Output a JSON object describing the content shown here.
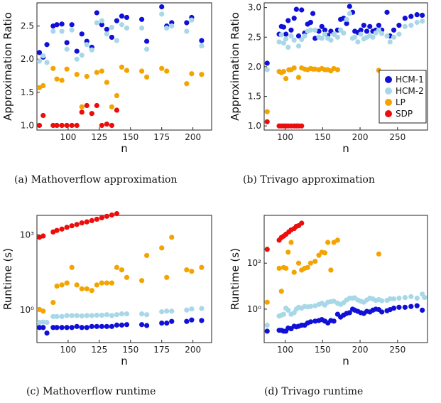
{
  "colors": {
    "HCM-1": "#1010d8",
    "HCM-2": "#a8d8e8",
    "LP": "#f4a400",
    "SDP": "#ec0d0d"
  },
  "captions": {
    "a": "(a)  Mathoverflow approximation",
    "b": "(b)  Trivago approximation",
    "c": "(c)  Mathoverflow runtime",
    "d": "(d)  Trivago runtime"
  },
  "legend": [
    "HCM-1",
    "HCM-2",
    "LP",
    "SDP"
  ],
  "chart_data": [
    {
      "id": "a",
      "type": "scatter",
      "xlabel": "n",
      "ylabel": "Approximation Ratio",
      "xlim": [
        75,
        215
      ],
      "ylim": [
        0.93,
        2.85
      ],
      "xticks": [
        100,
        125,
        150,
        175,
        200
      ],
      "yticks": [
        1.0,
        1.5,
        2.0,
        2.5
      ],
      "ytick_labels": [
        "1.0",
        "1.5",
        "2.0",
        "2.5"
      ],
      "yscale": "linear",
      "grid": false,
      "series": [
        {
          "name": "HCM-1",
          "x": [
            77,
            80,
            83,
            88,
            91,
            95,
            99,
            103,
            107,
            111,
            115,
            119,
            123,
            127,
            131,
            135,
            139,
            143,
            147,
            159,
            163,
            175,
            179,
            183,
            195,
            199,
            207
          ],
          "y": [
            2.1,
            2.03,
            2.22,
            2.5,
            2.52,
            2.53,
            2.25,
            2.52,
            2.12,
            2.38,
            2.27,
            2.18,
            2.7,
            2.52,
            2.45,
            2.33,
            2.58,
            2.65,
            2.63,
            2.6,
            2.27,
            2.79,
            2.5,
            2.55,
            2.55,
            2.63,
            2.28
          ]
        },
        {
          "name": "HCM-2",
          "x": [
            77,
            80,
            83,
            88,
            95,
            99,
            103,
            107,
            111,
            115,
            119,
            123,
            127,
            131,
            135,
            139,
            143,
            147,
            159,
            163,
            175,
            179,
            183,
            195,
            199,
            207
          ],
          "y": [
            1.97,
            2.05,
            1.95,
            2.42,
            2.42,
            2.15,
            2.44,
            2.0,
            2.06,
            2.22,
            2.14,
            2.55,
            2.58,
            2.38,
            2.48,
            2.28,
            2.52,
            2.47,
            2.47,
            2.15,
            2.68,
            2.47,
            2.5,
            2.42,
            2.59,
            2.2
          ]
        },
        {
          "name": "LP",
          "x": [
            77,
            80,
            88,
            91,
            95,
            99,
            107,
            111,
            115,
            123,
            127,
            131,
            135,
            139,
            143,
            147,
            159,
            163,
            175,
            179,
            195,
            199,
            207
          ],
          "y": [
            1.57,
            1.6,
            1.86,
            1.7,
            1.68,
            1.85,
            1.77,
            1.28,
            1.74,
            1.8,
            1.82,
            1.65,
            1.28,
            1.45,
            1.88,
            1.83,
            1.82,
            1.73,
            1.86,
            1.82,
            1.63,
            1.78,
            1.77
          ]
        },
        {
          "name": "SDP",
          "x": [
            77,
            80,
            88,
            91,
            95,
            99,
            103,
            107,
            111,
            115,
            119,
            123,
            127,
            131,
            135,
            139
          ],
          "y": [
            1.0,
            1.15,
            1.0,
            1.0,
            1.0,
            1.0,
            1.0,
            1.0,
            1.2,
            1.3,
            1.18,
            1.3,
            1.0,
            1.02,
            1.0,
            1.23
          ]
        }
      ]
    },
    {
      "id": "b",
      "type": "scatter",
      "xlabel": "n",
      "ylabel": "Approximation Ratio",
      "xlim": [
        72,
        290
      ],
      "ylim": [
        0.93,
        3.08
      ],
      "xticks": [
        100,
        150,
        200,
        250
      ],
      "yticks": [
        1.0,
        1.5,
        2.0,
        2.5,
        3.0
      ],
      "ytick_labels": [
        "1.0",
        "1.5",
        "2.0",
        "2.5",
        "3.0"
      ],
      "yscale": "linear",
      "grid": false,
      "series": [
        {
          "name": "HCM-1",
          "x": [
            76,
            92,
            95,
            98,
            101,
            104,
            108,
            112,
            115,
            118,
            122,
            126,
            130,
            134,
            137,
            140,
            145,
            149,
            153,
            157,
            161,
            165,
            170,
            174,
            178,
            182,
            186,
            190,
            193,
            197,
            201,
            205,
            209,
            213,
            217,
            221,
            225,
            229,
            236,
            240,
            245,
            252,
            260,
            268,
            276,
            283
          ],
          "y": [
            2.06,
            2.55,
            2.68,
            2.67,
            2.55,
            2.78,
            2.62,
            2.82,
            2.97,
            2.52,
            2.96,
            2.57,
            2.72,
            2.75,
            2.9,
            2.48,
            2.6,
            2.68,
            2.62,
            2.53,
            2.6,
            2.55,
            2.62,
            2.8,
            2.82,
            2.73,
            3.02,
            2.92,
            2.6,
            2.58,
            2.62,
            2.7,
            2.6,
            2.68,
            2.6,
            2.62,
            2.7,
            2.62,
            2.92,
            2.52,
            2.62,
            2.7,
            2.82,
            2.85,
            2.88,
            2.87
          ]
        },
        {
          "name": "HCM-2",
          "x": [
            76,
            92,
            95,
            98,
            101,
            104,
            108,
            112,
            118,
            122,
            126,
            130,
            134,
            140,
            145,
            149,
            153,
            157,
            161,
            165,
            170,
            174,
            178,
            182,
            186,
            190,
            193,
            197,
            201,
            205,
            209,
            213,
            217,
            221,
            225,
            229,
            236,
            240,
            245,
            252,
            260,
            268,
            276,
            283
          ],
          "y": [
            1.95,
            2.42,
            2.54,
            2.4,
            2.47,
            2.33,
            2.52,
            2.45,
            2.35,
            2.46,
            2.52,
            2.6,
            2.62,
            2.62,
            2.5,
            2.48,
            2.55,
            2.48,
            2.45,
            2.55,
            2.5,
            2.62,
            2.57,
            2.8,
            2.9,
            2.48,
            2.5,
            2.42,
            2.55,
            2.47,
            2.5,
            2.52,
            2.5,
            2.57,
            2.62,
            2.56,
            2.52,
            2.42,
            2.5,
            2.55,
            2.68,
            2.7,
            2.75,
            2.77
          ]
        },
        {
          "name": "LP",
          "x": [
            76,
            92,
            95,
            98,
            101,
            105,
            108,
            112,
            118,
            122,
            126,
            130,
            134,
            137,
            140,
            145,
            149,
            153,
            157,
            161,
            165,
            170,
            225
          ],
          "y": [
            1.24,
            1.92,
            1.9,
            1.92,
            1.8,
            1.95,
            1.95,
            1.98,
            1.82,
            1.98,
            1.96,
            1.95,
            1.97,
            1.96,
            1.96,
            1.95,
            1.97,
            1.95,
            1.95,
            1.93,
            1.97,
            1.95,
            1.94
          ]
        },
        {
          "name": "SDP",
          "x": [
            76,
            92,
            95,
            98,
            101,
            104,
            108,
            112,
            115,
            118,
            122
          ],
          "y": [
            1.07,
            1.0,
            1.0,
            1.0,
            1.0,
            1.0,
            1.0,
            1.0,
            1.0,
            1.0,
            1.0
          ]
        }
      ]
    },
    {
      "id": "c",
      "type": "scatter",
      "xlabel": "n",
      "ylabel": "Runtime (s)",
      "xlim": [
        75,
        215
      ],
      "ylim": [
        0.05,
        6000
      ],
      "xticks": [
        100,
        125,
        150,
        175,
        200
      ],
      "yticks": [
        1,
        1000
      ],
      "ytick_labels": [
        "10⁰",
        "10³"
      ],
      "yscale": "log",
      "grid": false,
      "series": [
        {
          "name": "HCM-1",
          "x": [
            77,
            80,
            83,
            88,
            91,
            95,
            99,
            103,
            107,
            111,
            115,
            119,
            123,
            127,
            131,
            135,
            139,
            143,
            147,
            159,
            163,
            175,
            179,
            183,
            195,
            199,
            207
          ],
          "y": [
            0.2,
            0.2,
            0.12,
            0.2,
            0.2,
            0.2,
            0.2,
            0.2,
            0.22,
            0.2,
            0.2,
            0.22,
            0.22,
            0.22,
            0.22,
            0.22,
            0.25,
            0.25,
            0.26,
            0.26,
            0.24,
            0.3,
            0.3,
            0.35,
            0.35,
            0.4,
            0.38
          ]
        },
        {
          "name": "HCM-2",
          "x": [
            77,
            80,
            83,
            88,
            91,
            95,
            99,
            103,
            107,
            111,
            115,
            119,
            123,
            127,
            131,
            135,
            139,
            143,
            147,
            159,
            163,
            175,
            179,
            183,
            195,
            199,
            207
          ],
          "y": [
            0.32,
            0.33,
            0.32,
            0.55,
            0.55,
            0.55,
            0.6,
            0.6,
            0.6,
            0.58,
            0.6,
            0.6,
            0.62,
            0.62,
            0.65,
            0.6,
            0.65,
            0.7,
            0.7,
            0.7,
            0.65,
            0.85,
            0.9,
            0.9,
            1.0,
            1.1,
            1.15
          ]
        },
        {
          "name": "LP",
          "x": [
            77,
            80,
            88,
            91,
            95,
            99,
            103,
            107,
            111,
            115,
            119,
            123,
            127,
            131,
            135,
            139,
            143,
            147,
            159,
            163,
            175,
            179,
            183,
            195,
            199,
            207
          ],
          "y": [
            1.05,
            0.9,
            2.0,
            9.0,
            10.0,
            12.0,
            50.0,
            10.0,
            7.0,
            7.0,
            6.0,
            10.0,
            12.0,
            12.0,
            12.0,
            50.0,
            40.0,
            20.0,
            15.0,
            150.0,
            300.0,
            20.0,
            800.0,
            40.0,
            35.0,
            50.0
          ]
        },
        {
          "name": "SDP",
          "x": [
            77,
            80,
            88,
            91,
            95,
            99,
            103,
            107,
            111,
            115,
            119,
            123,
            127,
            131,
            135,
            139
          ],
          "y": [
            800.0,
            900.0,
            1300.0,
            1500.0,
            1700.0,
            2000.0,
            2300.0,
            2600.0,
            3000.0,
            3300.0,
            3700.0,
            4200.0,
            4800.0,
            5500.0,
            6200.0,
            7000.0
          ]
        }
      ]
    },
    {
      "id": "d",
      "type": "scatter",
      "xlabel": "n",
      "ylabel": "Runtime (s)",
      "xlim": [
        72,
        290
      ],
      "ylim": [
        0.035,
        12000
      ],
      "xticks": [
        100,
        150,
        200,
        250
      ],
      "yticks": [
        1,
        100
      ],
      "ytick_labels": [
        "10⁰",
        "10²"
      ],
      "yscale": "log",
      "grid": false,
      "series": [
        {
          "name": "HCM-1",
          "x": [
            76,
            92,
            95,
            98,
            101,
            104,
            108,
            112,
            115,
            118,
            122,
            126,
            130,
            134,
            140,
            145,
            149,
            153,
            157,
            161,
            165,
            170,
            174,
            178,
            182,
            186,
            190,
            193,
            197,
            201,
            205,
            209,
            213,
            217,
            221,
            225,
            229,
            236,
            240,
            245,
            252,
            260,
            268,
            276,
            283
          ],
          "y": [
            0.11,
            0.12,
            0.12,
            0.11,
            0.11,
            0.15,
            0.14,
            0.18,
            0.17,
            0.18,
            0.2,
            0.2,
            0.25,
            0.28,
            0.3,
            0.32,
            0.35,
            0.3,
            0.25,
            0.32,
            0.3,
            0.6,
            0.45,
            0.55,
            0.65,
            0.7,
            1.0,
            0.9,
            0.8,
            0.7,
            0.65,
            0.8,
            0.75,
            0.9,
            1.0,
            0.95,
            0.75,
            0.85,
            0.95,
            1.1,
            1.2,
            1.2,
            1.3,
            1.4,
            0.9
          ]
        },
        {
          "name": "HCM-2",
          "x": [
            76,
            92,
            95,
            98,
            101,
            104,
            108,
            112,
            115,
            118,
            122,
            126,
            130,
            134,
            140,
            145,
            149,
            153,
            157,
            161,
            165,
            170,
            174,
            178,
            182,
            186,
            190,
            193,
            197,
            201,
            205,
            209,
            213,
            217,
            221,
            225,
            229,
            236,
            240,
            245,
            252,
            260,
            268,
            276,
            283,
            286
          ],
          "y": [
            0.2,
            0.5,
            0.55,
            0.6,
            1.1,
            0.9,
            0.6,
            0.7,
            1.0,
            1.2,
            1.1,
            1.3,
            1.25,
            1.3,
            1.4,
            1.6,
            1.8,
            1.5,
            2.0,
            2.1,
            2.2,
            1.8,
            1.6,
            1.9,
            2.5,
            3.0,
            3.0,
            3.1,
            2.5,
            2.2,
            2.0,
            2.5,
            3.0,
            2.8,
            2.4,
            2.6,
            2.3,
            2.4,
            2.8,
            2.8,
            3.0,
            3.2,
            3.5,
            3.0,
            4.5,
            3.2
          ]
        },
        {
          "name": "LP",
          "x": [
            76,
            92,
            95,
            98,
            101,
            104,
            108,
            112,
            118,
            122,
            126,
            130,
            134,
            140,
            145,
            149,
            153,
            157,
            161,
            165,
            170,
            225
          ],
          "y": [
            2.0,
            60.0,
            6.0,
            65.0,
            60.0,
            300.0,
            800.0,
            40.0,
            100.0,
            50.0,
            60.0,
            65.0,
            100.0,
            120.0,
            220.0,
            300.0,
            280.0,
            800.0,
            50.0,
            800.0,
            1000.0,
            250.0
          ]
        },
        {
          "name": "SDP",
          "x": [
            76,
            92,
            95,
            98,
            101,
            105,
            108,
            112,
            115,
            118,
            122
          ],
          "y": [
            400.0,
            1000.0,
            1300.0,
            1500.0,
            1800.0,
            2300.0,
            2800.0,
            3200.0,
            4000.0,
            4300.0,
            5500.0
          ]
        }
      ]
    }
  ]
}
